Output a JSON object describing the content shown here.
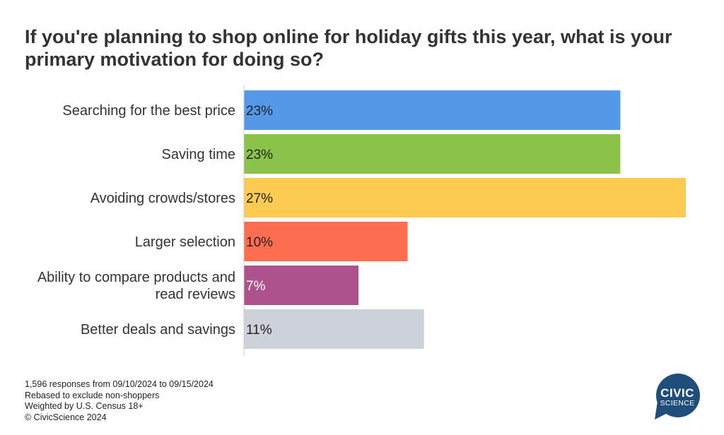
{
  "title": "If you're planning to shop online for holiday gifts this year, what is your primary motivation for doing so?",
  "chart_data": {
    "type": "bar",
    "orientation": "horizontal",
    "categories": [
      [
        "Searching for the best price"
      ],
      [
        "Saving time"
      ],
      [
        "Avoiding crowds/stores"
      ],
      [
        "Larger selection"
      ],
      [
        "Ability to compare products and",
        "read reviews"
      ],
      [
        "Better deals and savings"
      ]
    ],
    "values": [
      23,
      23,
      27,
      10,
      7,
      11
    ],
    "value_labels": [
      "23%",
      "23%",
      "27%",
      "10%",
      "7%",
      "11%"
    ],
    "colors": [
      "#5499e8",
      "#8bc34a",
      "#fecb52",
      "#fd6d50",
      "#ad528b",
      "#cdd1d9"
    ],
    "label_colors": [
      "#222222",
      "#222222",
      "#222222",
      "#222222",
      "#ffffff",
      "#222222"
    ],
    "xlim": [
      0,
      27
    ]
  },
  "footnotes": [
    "1,596 responses from 09/10/2024 to 09/15/2024",
    "Rebased to exclude non-shoppers",
    "Weighted by U.S. Census 18+",
    "© CivicScience 2024"
  ],
  "logo": {
    "line1": "CIVIC",
    "line2": "SCIENCE",
    "color": "#1f4e7a"
  }
}
